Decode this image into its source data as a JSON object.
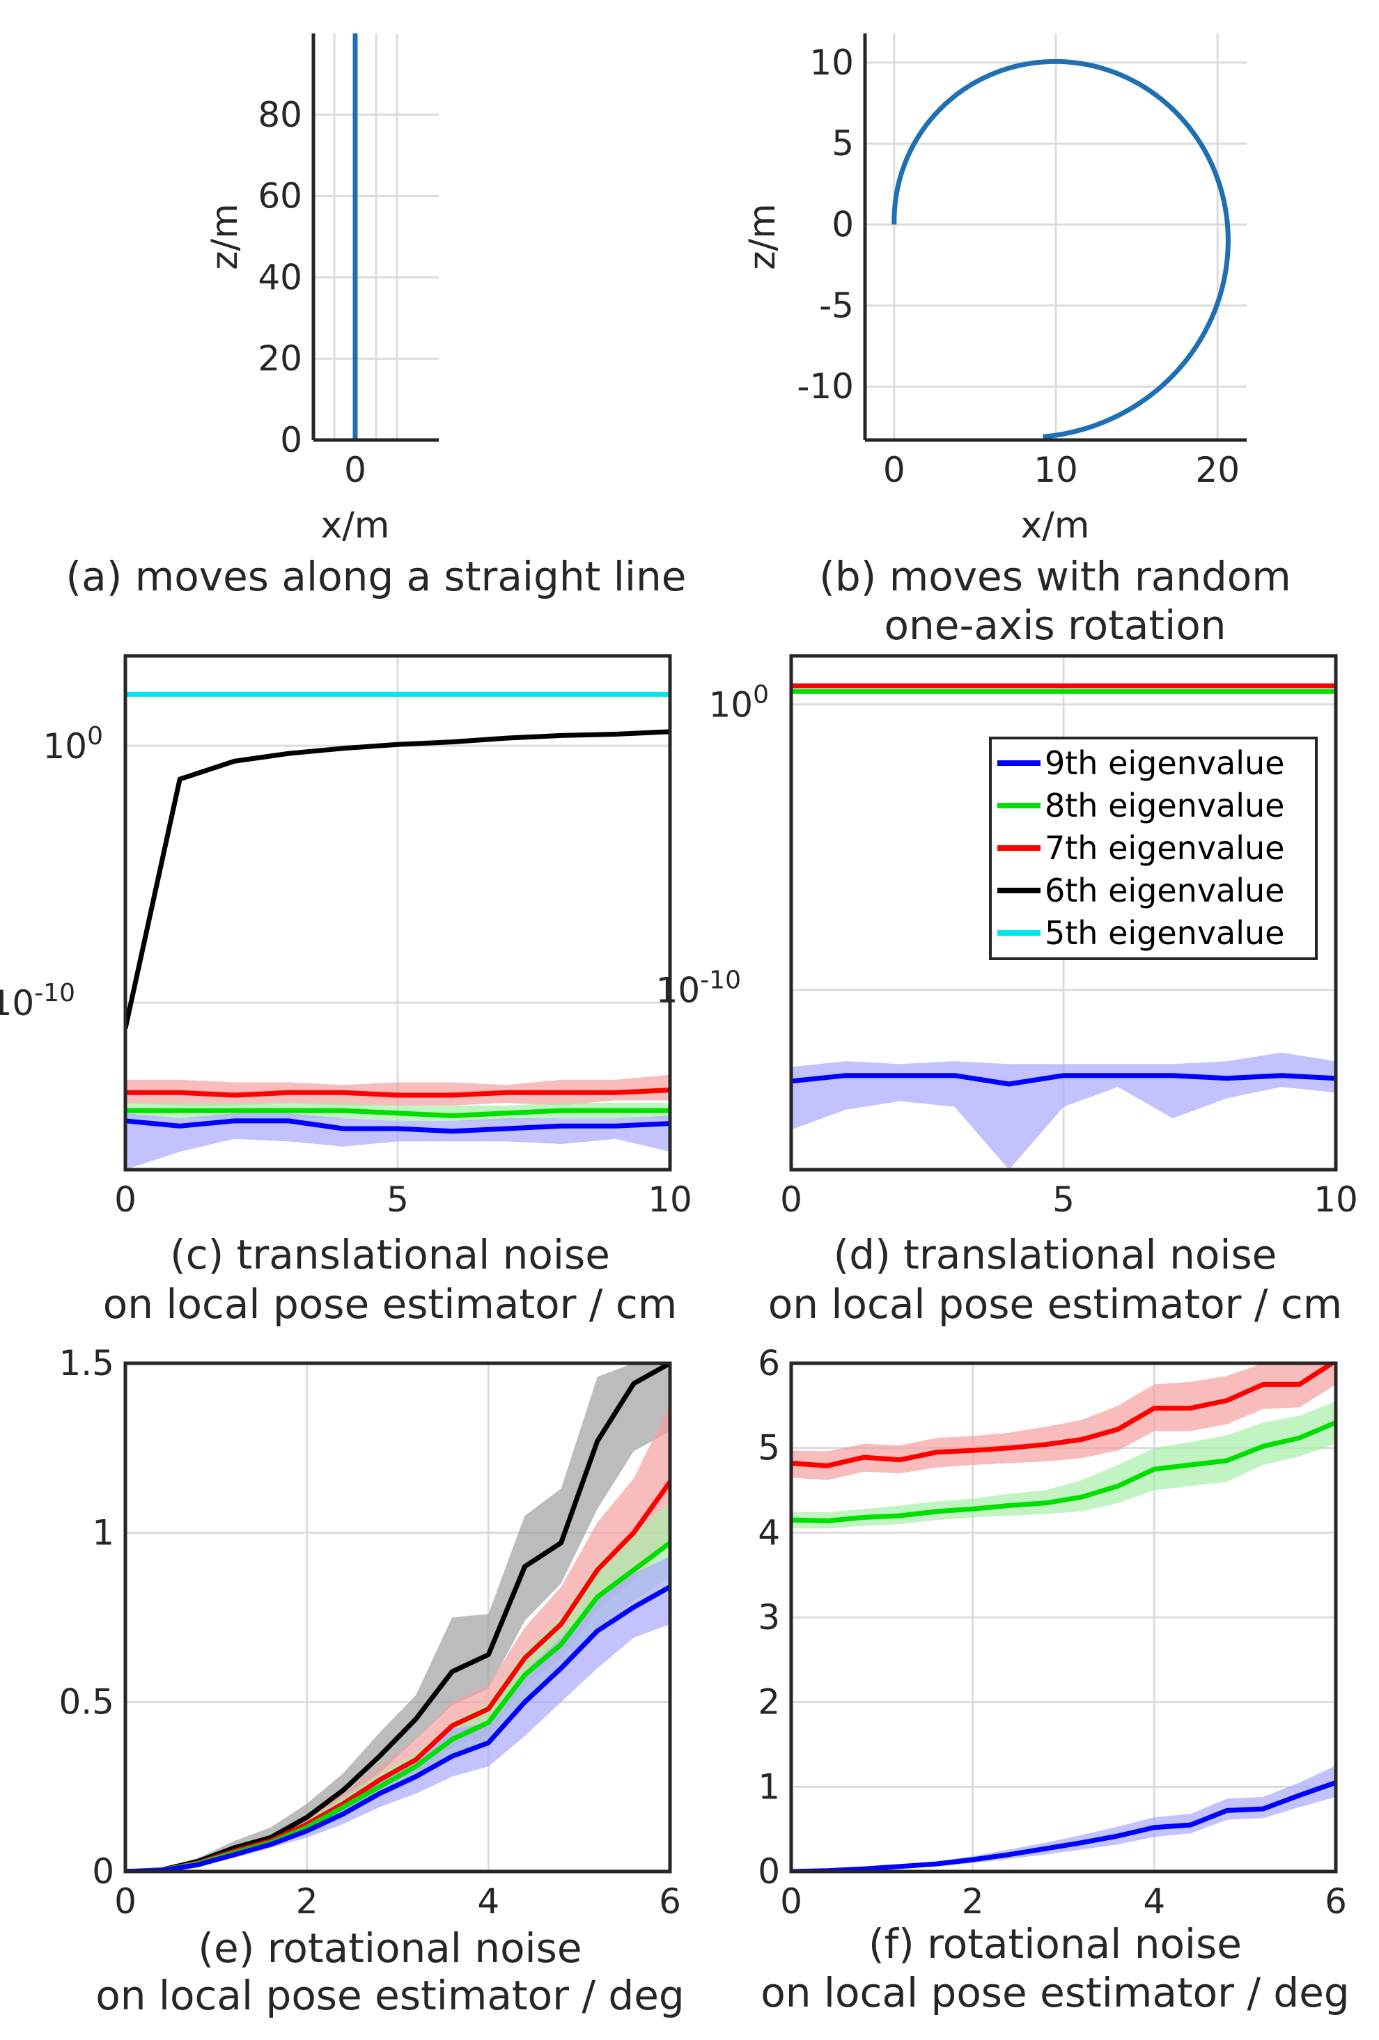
{
  "chart_data": [
    {
      "id": "a",
      "type": "line",
      "caption": [
        "(a) moves along a straight line"
      ],
      "xlabel": "x/m",
      "ylabel": "z/m",
      "xlim": [
        -0.2,
        0.4
      ],
      "ylim": [
        0,
        100
      ],
      "xticks": [
        0
      ],
      "xtick_labels": [
        "0"
      ],
      "xgrid": [
        -0.1,
        0,
        0.1,
        0.2
      ],
      "yticks": [
        0,
        20,
        40,
        60,
        80
      ],
      "ytick_labels": [
        "0",
        "20",
        "40",
        "60",
        "80"
      ],
      "series": [
        {
          "name": "trajectory",
          "color": "#1f6fb5",
          "x": [
            0,
            0
          ],
          "y": [
            0,
            100
          ]
        }
      ]
    },
    {
      "id": "b",
      "type": "line",
      "caption": [
        "(b) moves with random",
        "one-axis rotation"
      ],
      "xlabel": "x/m",
      "ylabel": "z/m",
      "xlim": [
        -1.8,
        21.8
      ],
      "ylim": [
        -13.3,
        11.8
      ],
      "xticks": [
        0,
        10,
        20
      ],
      "xtick_labels": [
        "0",
        "10",
        "20"
      ],
      "yticks": [
        10,
        5,
        0,
        -5,
        -10
      ],
      "ytick_labels": [
        "10",
        "5",
        "0",
        "-5",
        "-10"
      ],
      "series": [
        {
          "name": "trajectory",
          "color": "#1f6fb5",
          "spiral": {
            "cx": 9.2,
            "cy": 0,
            "r_start": 9.2,
            "r_end": 13.1,
            "theta_start_deg": 180,
            "theta_end_deg": 90,
            "direction": "cw",
            "theta_end_total_deg": -270
          }
        }
      ]
    },
    {
      "id": "c",
      "type": "line",
      "yscale": "log",
      "caption": [
        "(c) translational noise",
        "on local pose estimator / cm"
      ],
      "xlim": [
        0,
        10
      ],
      "ylim_log10": [
        -16.5,
        3.5
      ],
      "xticks": [
        0,
        5,
        10
      ],
      "xtick_labels": [
        "0",
        "5",
        "10"
      ],
      "yticks_log10": [
        0,
        -10
      ],
      "ytick_labels": [
        [
          "10",
          "0"
        ],
        [
          "10",
          "-10"
        ]
      ],
      "x": [
        0,
        1,
        2,
        3,
        4,
        5,
        6,
        7,
        8,
        9,
        10
      ],
      "series": [
        {
          "name": "5th eigenvalue",
          "color": "#00e5ee",
          "values": [
            2.0,
            2.0,
            2.0,
            2.0,
            2.0,
            2.0,
            2.0,
            2.0,
            2.0,
            2.0,
            2.0
          ]
        },
        {
          "name": "6th eigenvalue",
          "color": "#000000",
          "values": [
            -11.0,
            -1.3,
            -0.6,
            -0.3,
            -0.1,
            0.05,
            0.15,
            0.3,
            0.4,
            0.45,
            0.55
          ]
        },
        {
          "name": "7th eigenvalue",
          "color": "#ff0000",
          "values": [
            -13.5,
            -13.5,
            -13.6,
            -13.5,
            -13.5,
            -13.6,
            -13.6,
            -13.5,
            -13.5,
            -13.5,
            -13.4
          ],
          "band_lo": [
            -13.9,
            -14.0,
            -14.0,
            -13.9,
            -14.0,
            -14.0,
            -14.0,
            -13.9,
            -14.0,
            -13.8,
            -13.8
          ],
          "band_hi": [
            -13.0,
            -13.0,
            -13.1,
            -13.1,
            -13.2,
            -13.1,
            -13.1,
            -13.2,
            -13.0,
            -13.0,
            -12.8
          ],
          "band_color": "#f5a0a0"
        },
        {
          "name": "8th eigenvalue",
          "color": "#00e000",
          "values": [
            -14.2,
            -14.2,
            -14.2,
            -14.2,
            -14.2,
            -14.3,
            -14.4,
            -14.3,
            -14.2,
            -14.2,
            -14.2
          ],
          "band_lo": [
            -14.5,
            -14.5,
            -14.5,
            -14.5,
            -14.5,
            -14.6,
            -14.6,
            -14.6,
            -14.5,
            -14.5,
            -14.5
          ],
          "band_hi": [
            -13.9,
            -13.9,
            -13.9,
            -13.9,
            -13.9,
            -14.0,
            -14.0,
            -14.0,
            -13.9,
            -13.9,
            -13.9
          ],
          "band_color": "#a8eea8"
        },
        {
          "name": "9th eigenvalue",
          "color": "#0000ff",
          "values": [
            -14.6,
            -14.8,
            -14.6,
            -14.6,
            -14.9,
            -14.9,
            -15.0,
            -14.9,
            -14.8,
            -14.8,
            -14.7
          ],
          "band_lo": [
            -16.5,
            -15.8,
            -15.3,
            -15.4,
            -15.6,
            -15.4,
            -15.4,
            -15.4,
            -15.5,
            -15.3,
            -15.8
          ],
          "band_hi": [
            -14.3,
            -14.5,
            -14.3,
            -14.3,
            -14.5,
            -14.6,
            -14.6,
            -14.5,
            -14.5,
            -14.5,
            -14.4
          ],
          "band_color": "#a8a8ff"
        }
      ]
    },
    {
      "id": "d",
      "type": "line",
      "yscale": "log",
      "caption": [
        "(d) translational noise",
        "on local pose estimator / cm"
      ],
      "xlim": [
        0,
        10
      ],
      "ylim_log10": [
        -16.3,
        1.7
      ],
      "xticks": [
        0,
        5,
        10
      ],
      "xtick_labels": [
        "0",
        "5",
        "10"
      ],
      "yticks_log10": [
        0,
        -10
      ],
      "ytick_labels": [
        [
          "10",
          "0"
        ],
        [
          "10",
          "-10"
        ]
      ],
      "x": [
        0,
        1,
        2,
        3,
        4,
        5,
        6,
        7,
        8,
        9,
        10
      ],
      "legend": {
        "position": "top-right",
        "entries": [
          "9th eigenvalue",
          "8th eigenvalue",
          "7th eigenvalue",
          "6th eigenvalue",
          "5th eigenvalue"
        ],
        "colors": [
          "#0000ff",
          "#00e000",
          "#ff0000",
          "#000000",
          "#00e5ee"
        ]
      },
      "series": [
        {
          "name": "7th eigenvalue",
          "color": "#ff0000",
          "values": [
            0.65,
            0.65,
            0.65,
            0.65,
            0.65,
            0.65,
            0.65,
            0.65,
            0.65,
            0.65,
            0.65
          ]
        },
        {
          "name": "8th eigenvalue",
          "color": "#00e000",
          "values": [
            0.45,
            0.45,
            0.45,
            0.45,
            0.45,
            0.45,
            0.45,
            0.45,
            0.45,
            0.45,
            0.45
          ]
        },
        {
          "name": "9th eigenvalue",
          "color": "#0000ff",
          "values": [
            -13.2,
            -13.0,
            -13.0,
            -13.0,
            -13.3,
            -13.0,
            -13.0,
            -13.0,
            -13.1,
            -13.0,
            -13.1
          ],
          "band_lo": [
            -14.9,
            -14.2,
            -13.9,
            -14.1,
            -16.3,
            -14.1,
            -13.4,
            -14.5,
            -13.8,
            -13.4,
            -13.6
          ],
          "band_hi": [
            -12.7,
            -12.5,
            -12.6,
            -12.5,
            -12.6,
            -12.6,
            -12.6,
            -12.6,
            -12.5,
            -12.2,
            -12.5
          ],
          "band_color": "#a8a8ff"
        }
      ]
    },
    {
      "id": "e",
      "type": "line",
      "caption": [
        "(e) rotational noise",
        "on local pose estimator / deg"
      ],
      "xlim": [
        0,
        6
      ],
      "ylim": [
        0,
        1.5
      ],
      "xticks": [
        0,
        2,
        4,
        6
      ],
      "xtick_labels": [
        "0",
        "2",
        "4",
        "6"
      ],
      "yticks": [
        0,
        0.5,
        1,
        1.5
      ],
      "ytick_labels": [
        "0",
        "0.5",
        "1",
        "1.5"
      ],
      "x": [
        0,
        0.4,
        0.8,
        1.2,
        1.6,
        2.0,
        2.4,
        2.8,
        3.2,
        3.6,
        4.0,
        4.4,
        4.8,
        5.2,
        5.6,
        6.0
      ],
      "series": [
        {
          "name": "6th eigenvalue",
          "color": "#000000",
          "values": [
            0,
            0.005,
            0.03,
            0.07,
            0.1,
            0.16,
            0.24,
            0.34,
            0.45,
            0.59,
            0.64,
            0.9,
            0.97,
            1.27,
            1.44,
            1.5
          ],
          "band_lo": [
            0,
            0.003,
            0.02,
            0.055,
            0.085,
            0.13,
            0.2,
            0.29,
            0.39,
            0.49,
            0.54,
            0.74,
            0.85,
            1.07,
            1.24,
            1.3
          ],
          "band_hi": [
            0,
            0.008,
            0.04,
            0.09,
            0.13,
            0.2,
            0.29,
            0.41,
            0.52,
            0.75,
            0.76,
            1.05,
            1.13,
            1.46,
            1.5,
            1.5
          ],
          "band_color": "#a0a0a0"
        },
        {
          "name": "7th eigenvalue",
          "color": "#ff0000",
          "values": [
            0,
            0.004,
            0.025,
            0.06,
            0.09,
            0.14,
            0.2,
            0.27,
            0.33,
            0.43,
            0.48,
            0.63,
            0.73,
            0.89,
            1.0,
            1.15
          ],
          "band_lo": [
            0,
            0.003,
            0.02,
            0.05,
            0.08,
            0.12,
            0.17,
            0.23,
            0.28,
            0.37,
            0.4,
            0.55,
            0.63,
            0.77,
            0.86,
            0.97
          ],
          "band_hi": [
            0,
            0.006,
            0.03,
            0.07,
            0.1,
            0.16,
            0.23,
            0.31,
            0.39,
            0.5,
            0.55,
            0.72,
            0.84,
            1.03,
            1.16,
            1.38
          ],
          "band_color": "#f5a0a0"
        },
        {
          "name": "8th eigenvalue",
          "color": "#00e000",
          "values": [
            0,
            0.004,
            0.023,
            0.055,
            0.085,
            0.13,
            0.19,
            0.25,
            0.31,
            0.39,
            0.44,
            0.58,
            0.67,
            0.81,
            0.89,
            0.97
          ],
          "band_lo": [
            0,
            0.003,
            0.018,
            0.045,
            0.075,
            0.11,
            0.16,
            0.22,
            0.27,
            0.34,
            0.38,
            0.51,
            0.6,
            0.72,
            0.8,
            0.87
          ],
          "band_hi": [
            0,
            0.005,
            0.028,
            0.065,
            0.095,
            0.15,
            0.22,
            0.29,
            0.35,
            0.44,
            0.5,
            0.65,
            0.75,
            0.91,
            1.0,
            1.09
          ],
          "band_color": "#a8eea8"
        },
        {
          "name": "9th eigenvalue",
          "color": "#0000ff",
          "values": [
            0,
            0.003,
            0.02,
            0.05,
            0.08,
            0.12,
            0.17,
            0.23,
            0.28,
            0.34,
            0.38,
            0.5,
            0.6,
            0.71,
            0.78,
            0.84
          ],
          "band_lo": [
            0,
            0.002,
            0.015,
            0.04,
            0.07,
            0.1,
            0.14,
            0.19,
            0.23,
            0.28,
            0.31,
            0.4,
            0.5,
            0.6,
            0.69,
            0.73
          ],
          "band_hi": [
            0,
            0.004,
            0.025,
            0.06,
            0.09,
            0.14,
            0.2,
            0.27,
            0.33,
            0.42,
            0.44,
            0.59,
            0.69,
            0.81,
            0.88,
            0.93
          ],
          "band_color": "#a8a8ff"
        }
      ]
    },
    {
      "id": "f",
      "type": "line",
      "caption": [
        "(f) rotational noise",
        "on local pose estimator / deg"
      ],
      "xlim": [
        0,
        6
      ],
      "ylim": [
        0,
        6
      ],
      "xticks": [
        0,
        2,
        4,
        6
      ],
      "xtick_labels": [
        "0",
        "2",
        "4",
        "6"
      ],
      "yticks": [
        0,
        1,
        2,
        3,
        4,
        5,
        6
      ],
      "ytick_labels": [
        "0",
        "1",
        "2",
        "3",
        "4",
        "5",
        "6"
      ],
      "x": [
        0,
        0.4,
        0.8,
        1.2,
        1.6,
        2.0,
        2.4,
        2.8,
        3.2,
        3.6,
        4.0,
        4.4,
        4.8,
        5.2,
        5.6,
        6.0
      ],
      "series": [
        {
          "name": "7th eigenvalue",
          "color": "#ff0000",
          "values": [
            4.82,
            4.79,
            4.89,
            4.86,
            4.95,
            4.97,
            5.0,
            5.04,
            5.1,
            5.22,
            5.47,
            5.47,
            5.56,
            5.75,
            5.75,
            6.03
          ],
          "band_lo": [
            4.65,
            4.62,
            4.72,
            4.7,
            4.77,
            4.8,
            4.82,
            4.84,
            4.88,
            4.97,
            5.2,
            5.2,
            5.28,
            5.46,
            5.48,
            5.75
          ],
          "band_hi": [
            4.97,
            4.96,
            5.05,
            5.03,
            5.12,
            5.14,
            5.18,
            5.25,
            5.33,
            5.5,
            5.75,
            5.78,
            5.85,
            6.0,
            6.0,
            6.0
          ],
          "band_color": "#f5a0a0"
        },
        {
          "name": "8th eigenvalue",
          "color": "#00e000",
          "values": [
            4.15,
            4.14,
            4.18,
            4.2,
            4.25,
            4.28,
            4.32,
            4.35,
            4.42,
            4.55,
            4.75,
            4.8,
            4.85,
            5.02,
            5.12,
            5.3
          ],
          "band_lo": [
            4.05,
            4.05,
            4.08,
            4.1,
            4.15,
            4.18,
            4.2,
            4.22,
            4.25,
            4.35,
            4.5,
            4.55,
            4.6,
            4.8,
            4.9,
            5.05
          ],
          "band_hi": [
            4.25,
            4.24,
            4.28,
            4.32,
            4.37,
            4.4,
            4.46,
            4.5,
            4.62,
            4.8,
            5.0,
            5.07,
            5.15,
            5.3,
            5.38,
            5.55
          ],
          "band_color": "#a8eea8"
        },
        {
          "name": "9th eigenvalue",
          "color": "#0000ff",
          "values": [
            0,
            0.01,
            0.03,
            0.06,
            0.09,
            0.14,
            0.2,
            0.27,
            0.34,
            0.42,
            0.52,
            0.55,
            0.72,
            0.74,
            0.9,
            1.05
          ],
          "band_lo": [
            0,
            0.005,
            0.02,
            0.04,
            0.06,
            0.1,
            0.15,
            0.2,
            0.26,
            0.32,
            0.41,
            0.45,
            0.61,
            0.63,
            0.76,
            0.88
          ],
          "band_hi": [
            0,
            0.015,
            0.04,
            0.08,
            0.12,
            0.18,
            0.26,
            0.34,
            0.43,
            0.53,
            0.64,
            0.68,
            0.86,
            0.88,
            1.05,
            1.25
          ],
          "band_color": "#a8a8ff"
        }
      ]
    }
  ]
}
